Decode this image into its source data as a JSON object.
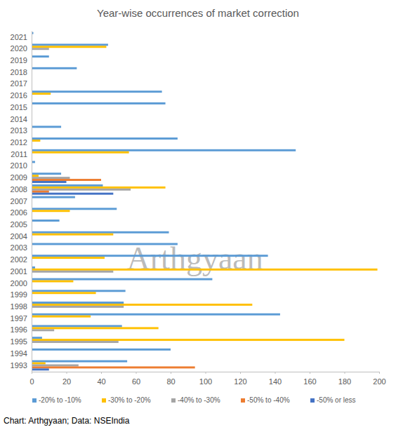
{
  "chart_data": {
    "type": "bar",
    "orientation": "horizontal",
    "title": "Year-wise occurrences of market correction",
    "source": "Chart: Arthgyaan; Data: NSEIndia",
    "annotations": [
      "Arthgyaan"
    ],
    "categories": [
      "1993",
      "1994",
      "1995",
      "1996",
      "1997",
      "1998",
      "1999",
      "2000",
      "2001",
      "2002",
      "2003",
      "2004",
      "2005",
      "2006",
      "2007",
      "2008",
      "2009",
      "2010",
      "2011",
      "2012",
      "2013",
      "2014",
      "2015",
      "2016",
      "2017",
      "2018",
      "2019",
      "2020",
      "2021"
    ],
    "series": [
      {
        "name": "-20% to -10%",
        "color": "#5b9bd5",
        "values": [
          55,
          80,
          6,
          52,
          143,
          53,
          54,
          104,
          2,
          136,
          84,
          79,
          16,
          49,
          25,
          41,
          17,
          2,
          152,
          84,
          17,
          0,
          77,
          75,
          0,
          26,
          10,
          44,
          1
        ]
      },
      {
        "name": "-30% to -20%",
        "color": "#ffc000",
        "values": [
          8,
          0,
          180,
          73,
          34,
          127,
          37,
          24,
          199,
          42,
          0,
          47,
          0,
          22,
          0,
          77,
          4,
          0,
          56,
          5,
          0,
          0,
          0,
          11,
          0,
          0,
          0,
          43,
          0
        ]
      },
      {
        "name": "-40% to -30%",
        "color": "#a5a5a5",
        "values": [
          27,
          0,
          50,
          13,
          0,
          53,
          0,
          0,
          47,
          0,
          0,
          0,
          0,
          0,
          0,
          57,
          22,
          0,
          0,
          0,
          0,
          0,
          0,
          0,
          0,
          0,
          0,
          10,
          0
        ]
      },
      {
        "name": "-50% to -40%",
        "color": "#ed7d31",
        "values": [
          94,
          0,
          0,
          0,
          0,
          0,
          0,
          0,
          0,
          0,
          0,
          0,
          0,
          0,
          0,
          10,
          40,
          0,
          0,
          0,
          0,
          0,
          0,
          0,
          0,
          0,
          0,
          0,
          0
        ]
      },
      {
        "name": "-50% or less",
        "color": "#4472c4",
        "values": [
          10,
          0,
          0,
          0,
          0,
          0,
          0,
          0,
          0,
          0,
          0,
          0,
          0,
          0,
          0,
          47,
          20,
          0,
          0,
          0,
          0,
          0,
          0,
          0,
          0,
          0,
          0,
          0,
          0
        ]
      }
    ],
    "xlim": [
      0,
      200
    ],
    "xticks": [
      0,
      20,
      40,
      60,
      80,
      100,
      120,
      140,
      160,
      180,
      200
    ],
    "grid": false,
    "legend": "bottom"
  }
}
